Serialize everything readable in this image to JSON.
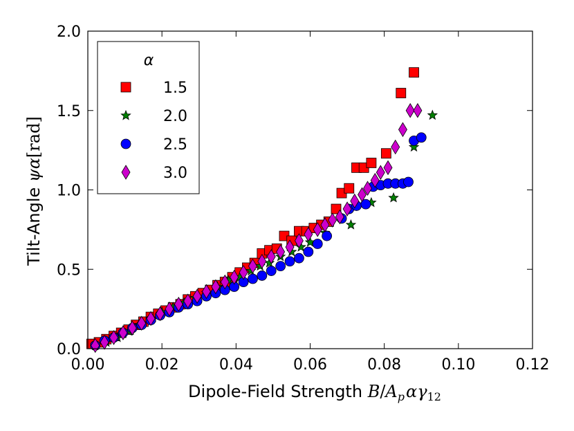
{
  "chart_data": {
    "type": "scatter",
    "title": "",
    "xlabel": {
      "text": "Dipole-Field Strength ",
      "math": [
        "B",
        "/",
        "A",
        "p",
        "α",
        "γ",
        "12"
      ]
    },
    "ylabel": {
      "text": "Tilt-Angle ",
      "math": [
        "ψα",
        "[rad]"
      ]
    },
    "xlim": [
      0.0,
      0.12
    ],
    "ylim": [
      0.0,
      2.0
    ],
    "xticks": [
      "0.00",
      "0.02",
      "0.04",
      "0.06",
      "0.08",
      "0.10",
      "0.12"
    ],
    "yticks": [
      "0.0",
      "0.5",
      "1.0",
      "1.5",
      "2.0"
    ],
    "grid": false,
    "legend": {
      "title": "α",
      "position": "top-left"
    },
    "series": [
      {
        "name": "1.5",
        "marker": "square",
        "color": "#ff0000",
        "x": [
          0.001,
          0.003,
          0.005,
          0.007,
          0.009,
          0.011,
          0.013,
          0.015,
          0.017,
          0.019,
          0.021,
          0.023,
          0.025,
          0.027,
          0.029,
          0.031,
          0.033,
          0.035,
          0.037,
          0.039,
          0.041,
          0.043,
          0.045,
          0.047,
          0.049,
          0.051,
          0.053,
          0.055,
          0.057,
          0.059,
          0.061,
          0.063,
          0.065,
          0.067,
          0.0685,
          0.0705,
          0.0725,
          0.0745,
          0.0765,
          0.0805,
          0.0845,
          0.088
        ],
        "y": [
          0.03,
          0.04,
          0.06,
          0.08,
          0.1,
          0.12,
          0.15,
          0.17,
          0.2,
          0.22,
          0.24,
          0.26,
          0.28,
          0.31,
          0.33,
          0.35,
          0.37,
          0.4,
          0.42,
          0.45,
          0.48,
          0.51,
          0.54,
          0.6,
          0.62,
          0.63,
          0.71,
          0.68,
          0.74,
          0.74,
          0.76,
          0.78,
          0.8,
          0.88,
          0.98,
          1.01,
          1.14,
          1.14,
          1.17,
          1.23,
          1.61,
          1.74
        ]
      },
      {
        "name": "2.0",
        "marker": "star",
        "color": "#008000",
        "x": [
          0.002,
          0.005,
          0.008,
          0.011,
          0.014,
          0.017,
          0.02,
          0.023,
          0.026,
          0.029,
          0.032,
          0.035,
          0.038,
          0.041,
          0.044,
          0.0465,
          0.049,
          0.052,
          0.055,
          0.0575,
          0.06,
          0.064,
          0.071,
          0.0765,
          0.0825,
          0.088,
          0.093
        ],
        "y": [
          0.02,
          0.04,
          0.07,
          0.11,
          0.15,
          0.19,
          0.23,
          0.26,
          0.29,
          0.32,
          0.35,
          0.39,
          0.43,
          0.45,
          0.49,
          0.52,
          0.54,
          0.58,
          0.61,
          0.64,
          0.67,
          0.73,
          0.78,
          0.92,
          0.95,
          1.27,
          1.47
        ]
      },
      {
        "name": "2.5",
        "marker": "circle",
        "color": "#0000ff",
        "x": [
          0.002,
          0.0045,
          0.007,
          0.0095,
          0.012,
          0.0145,
          0.017,
          0.0195,
          0.022,
          0.0245,
          0.027,
          0.0295,
          0.032,
          0.0345,
          0.037,
          0.0395,
          0.042,
          0.0445,
          0.047,
          0.0495,
          0.052,
          0.0545,
          0.057,
          0.0595,
          0.062,
          0.0645,
          0.0685,
          0.0705,
          0.0725,
          0.075,
          0.077,
          0.079,
          0.081,
          0.083,
          0.085,
          0.0865,
          0.088,
          0.09
        ],
        "y": [
          0.02,
          0.05,
          0.07,
          0.1,
          0.13,
          0.15,
          0.18,
          0.21,
          0.23,
          0.26,
          0.28,
          0.3,
          0.33,
          0.35,
          0.37,
          0.39,
          0.42,
          0.44,
          0.46,
          0.49,
          0.52,
          0.55,
          0.57,
          0.61,
          0.66,
          0.71,
          0.82,
          0.88,
          0.9,
          0.91,
          1.02,
          1.03,
          1.04,
          1.04,
          1.04,
          1.05,
          1.31,
          1.33
        ]
      },
      {
        "name": "3.0",
        "marker": "diamond",
        "color": "#cc00cc",
        "x": [
          0.002,
          0.0045,
          0.007,
          0.0095,
          0.012,
          0.0145,
          0.017,
          0.0195,
          0.022,
          0.0245,
          0.027,
          0.0295,
          0.032,
          0.0345,
          0.037,
          0.0395,
          0.042,
          0.0445,
          0.047,
          0.0495,
          0.052,
          0.0545,
          0.057,
          0.0595,
          0.062,
          0.064,
          0.066,
          0.068,
          0.07,
          0.072,
          0.074,
          0.0755,
          0.0775,
          0.079,
          0.081,
          0.083,
          0.085,
          0.087,
          0.089
        ],
        "y": [
          0.02,
          0.04,
          0.07,
          0.1,
          0.13,
          0.16,
          0.19,
          0.22,
          0.25,
          0.28,
          0.3,
          0.33,
          0.36,
          0.39,
          0.42,
          0.45,
          0.48,
          0.52,
          0.55,
          0.58,
          0.61,
          0.64,
          0.68,
          0.72,
          0.75,
          0.78,
          0.81,
          0.83,
          0.88,
          0.93,
          0.97,
          1.01,
          1.06,
          1.11,
          1.14,
          1.27,
          1.38,
          1.5,
          1.5
        ]
      }
    ]
  }
}
